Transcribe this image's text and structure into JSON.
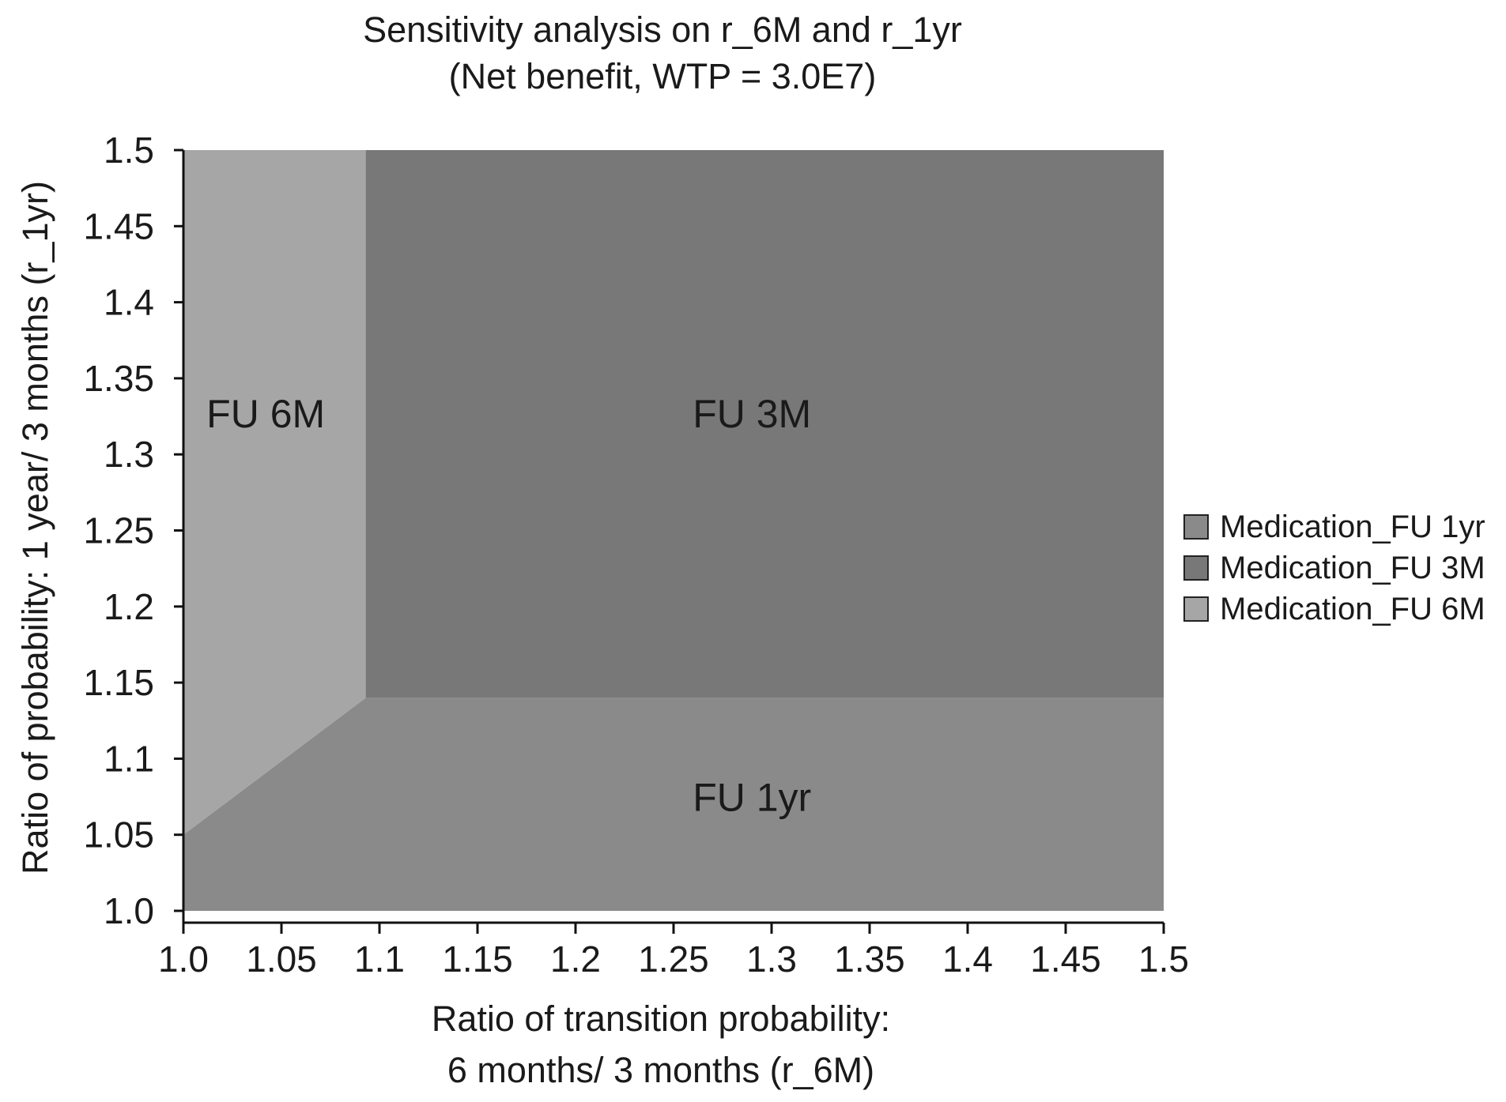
{
  "chart_data": {
    "type": "area",
    "title": "Sensitivity analysis on r_6M and r_1yr",
    "subtitle": "(Net benefit, WTP = 3.0E7)",
    "xlabel_lines": [
      "Ratio of transition probability:",
      "6 months/ 3 months (r_6M)"
    ],
    "ylabel": "Ratio of probability: 1 year/ 3 months (r_1yr)",
    "xlim": [
      1.0,
      1.5
    ],
    "ylim": [
      1.0,
      1.5
    ],
    "x_ticks": [
      "1.0",
      "1.05",
      "1.1",
      "1.15",
      "1.2",
      "1.25",
      "1.3",
      "1.35",
      "1.4",
      "1.45",
      "1.5"
    ],
    "y_ticks": [
      "1.0",
      "1.05",
      "1.1",
      "1.15",
      "1.2",
      "1.25",
      "1.3",
      "1.35",
      "1.4",
      "1.45",
      "1.5"
    ],
    "grid": false,
    "legend_position": "right",
    "regions": [
      {
        "name": "Medication_FU 1yr",
        "label": "FU 1yr",
        "color": "#8a8a8a",
        "polygon": [
          [
            1.0,
            1.0
          ],
          [
            1.5,
            1.0
          ],
          [
            1.5,
            1.14
          ],
          [
            1.093,
            1.14
          ],
          [
            1.0,
            1.05
          ]
        ],
        "label_at": [
          1.29,
          1.075
        ]
      },
      {
        "name": "Medication_FU 3M",
        "label": "FU 3M",
        "color": "#787878",
        "polygon": [
          [
            1.093,
            1.14
          ],
          [
            1.5,
            1.14
          ],
          [
            1.5,
            1.5
          ],
          [
            1.093,
            1.5
          ]
        ],
        "label_at": [
          1.29,
          1.327
        ]
      },
      {
        "name": "Medication_FU 6M",
        "label": "FU 6M",
        "color": "#a6a6a6",
        "polygon": [
          [
            1.0,
            1.05
          ],
          [
            1.093,
            1.14
          ],
          [
            1.093,
            1.5
          ],
          [
            1.0,
            1.5
          ]
        ],
        "label_at": [
          1.042,
          1.327
        ]
      }
    ],
    "legend": [
      "Medication_FU 1yr",
      "Medication_FU 3M",
      "Medication_FU 6M"
    ]
  }
}
